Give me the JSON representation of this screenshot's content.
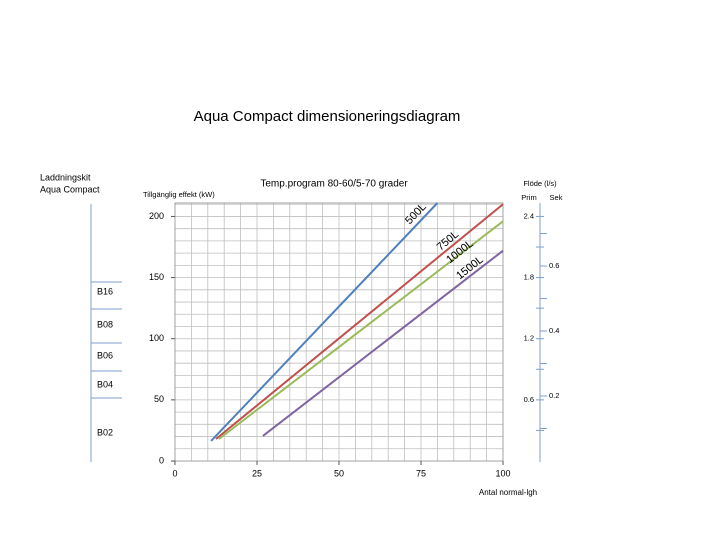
{
  "chart_data": {
    "type": "line",
    "title": "Aqua Compact dimensioneringsdiagram",
    "subtitle": "Temp.program 80-60/5-70 grader",
    "ylabel": "Tillgänglig effekt (kW)",
    "xlabel": "Antal normal-lgh",
    "xlim": [
      0,
      100
    ],
    "ylim": [
      0,
      211
    ],
    "xticks": [
      0,
      25,
      50,
      75,
      100
    ],
    "yticks": [
      0,
      50,
      100,
      150,
      200
    ],
    "x_minor_ticks": [
      5,
      10,
      15,
      20,
      25,
      30,
      35,
      40,
      45,
      50,
      55,
      60,
      65,
      70,
      75,
      80,
      85,
      90,
      95
    ],
    "y_minor_ticks": [
      10,
      20,
      30,
      40,
      50,
      60,
      70,
      80,
      90,
      100,
      110,
      120,
      130,
      140,
      150,
      160,
      170,
      180,
      190,
      200,
      210
    ],
    "grid": true,
    "series": [
      {
        "name": "500L",
        "color": "#4f81bd",
        "x": [
          11,
          80
        ],
        "values": [
          16.4,
          211
        ]
      },
      {
        "name": "750L",
        "color": "#c0504d",
        "x": [
          12.5,
          100
        ],
        "values": [
          18,
          210
        ]
      },
      {
        "name": "1000L",
        "color": "#9bbb59",
        "x": [
          13.4,
          100
        ],
        "values": [
          18,
          196
        ]
      },
      {
        "name": "1500L",
        "color": "#8064a2",
        "x": [
          26.8,
          100
        ],
        "values": [
          20.5,
          172
        ]
      }
    ],
    "flow_axis": {
      "title": "Flöde (l/s)",
      "prim_label": "Prim",
      "sek_label": "Sek",
      "prim_lim": [
        0,
        2.532
      ],
      "prim_ticks": [
        2.4,
        1.8,
        1.2,
        0.6
      ],
      "prim_minor_ticks": [
        0.3,
        0.9,
        1.5,
        2.1
      ],
      "sek_lim": [
        0,
        0.794
      ],
      "sek_ticks": [
        0.6,
        0.4,
        0.2
      ],
      "sek_minor_ticks": [
        0.1,
        0.3,
        0.5,
        0.7
      ]
    },
    "kit_axis": {
      "title_lines": [
        "Laddningskit",
        "Aqua Compact"
      ],
      "kits": [
        "B16",
        "B08",
        "B06",
        "B04",
        "B02"
      ]
    }
  }
}
